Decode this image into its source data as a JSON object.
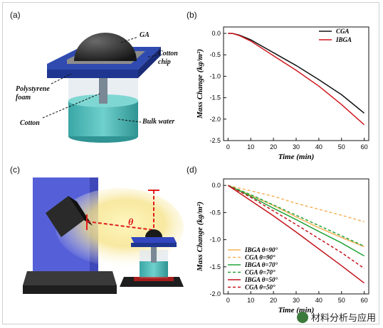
{
  "panels": {
    "a": {
      "label": "(a)",
      "annotations": {
        "ga": "GA",
        "cotton_chip": "Cotton chip",
        "polystyrene_foam": "Polystyrene foam",
        "cotton": "Cotton",
        "bulk_water": "Bulk water"
      }
    },
    "b": {
      "label": "(b)"
    },
    "c": {
      "label": "(c)",
      "theta": "θ"
    },
    "d": {
      "label": "(d)"
    }
  },
  "watermark": "材料分析与应用",
  "colors": {
    "black": "#111111",
    "red": "#d0161d",
    "orange": "#f5b35a",
    "green": "#22a33a",
    "darkred": "#c4141c"
  },
  "chart_data": [
    {
      "type": "line",
      "xlabel": "Time (min)",
      "ylabel": "Mass Change (kg/m²)",
      "xlim": [
        -2,
        62
      ],
      "ylim": [
        -2.5,
        0.15
      ],
      "xticks": [
        0,
        10,
        20,
        30,
        40,
        50,
        60
      ],
      "yticks": [
        0.0,
        -0.5,
        -1.0,
        -1.5,
        -2.0,
        -2.5
      ],
      "ytick_labels": [
        "0.0",
        "-0.5",
        "-1.0",
        "-1.5",
        "-2.0",
        "-2.5"
      ],
      "legend_position": "top-right",
      "series": [
        {
          "name": "CGA",
          "color": "#111111",
          "dash": "solid",
          "x": [
            0,
            2,
            5,
            10,
            20,
            30,
            40,
            50,
            60
          ],
          "y": [
            0,
            0,
            -0.04,
            -0.15,
            -0.45,
            -0.75,
            -1.08,
            -1.43,
            -1.86
          ]
        },
        {
          "name": "IBGA",
          "color": "#d0161d",
          "dash": "solid",
          "x": [
            0,
            2,
            5,
            10,
            20,
            30,
            40,
            50,
            60
          ],
          "y": [
            0,
            0,
            -0.05,
            -0.18,
            -0.52,
            -0.86,
            -1.23,
            -1.66,
            -2.13
          ]
        }
      ]
    },
    {
      "type": "line",
      "xlabel": "Time (min)",
      "ylabel": "Mass Change (kg/m²)",
      "xlim": [
        -2,
        62
      ],
      "ylim": [
        -2.0,
        0.12
      ],
      "xticks": [
        0,
        10,
        20,
        30,
        40,
        50,
        60
      ],
      "yticks": [
        0.0,
        -0.5,
        -1.0,
        -1.5,
        -2.0
      ],
      "ytick_labels": [
        "0.0",
        "-0.5",
        "-1.0",
        "-1.5",
        "-2.0"
      ],
      "legend_position": "bottom-left",
      "series": [
        {
          "name": "IBGA θ=90°",
          "color": "#f5b35a",
          "dash": "solid",
          "x": [
            0,
            10,
            20,
            30,
            40,
            50,
            60
          ],
          "y": [
            0,
            -0.18,
            -0.37,
            -0.58,
            -0.78,
            -0.96,
            -1.13
          ]
        },
        {
          "name": "CGA θ=90°",
          "color": "#f5b35a",
          "dash": "dashed",
          "x": [
            0,
            10,
            20,
            30,
            40,
            50,
            60
          ],
          "y": [
            0,
            -0.1,
            -0.2,
            -0.33,
            -0.44,
            -0.55,
            -0.67
          ]
        },
        {
          "name": "IBGA θ=70°",
          "color": "#22a33a",
          "dash": "solid",
          "x": [
            0,
            10,
            20,
            30,
            40,
            50,
            60
          ],
          "y": [
            0,
            -0.2,
            -0.42,
            -0.63,
            -0.85,
            -1.06,
            -1.3
          ]
        },
        {
          "name": "CGA θ=70°",
          "color": "#22a33a",
          "dash": "dashed",
          "x": [
            0,
            10,
            20,
            30,
            40,
            50,
            60
          ],
          "y": [
            0,
            -0.17,
            -0.36,
            -0.55,
            -0.74,
            -0.93,
            -1.12
          ]
        },
        {
          "name": "IBGA θ=50°",
          "color": "#c4141c",
          "dash": "solid",
          "x": [
            0,
            10,
            20,
            30,
            40,
            50,
            60
          ],
          "y": [
            0,
            -0.28,
            -0.56,
            -0.86,
            -1.17,
            -1.48,
            -1.8
          ]
        },
        {
          "name": "CGA θ=50°",
          "color": "#c4141c",
          "dash": "dashed",
          "x": [
            0,
            10,
            20,
            30,
            40,
            50,
            60
          ],
          "y": [
            0,
            -0.22,
            -0.47,
            -0.72,
            -0.98,
            -1.24,
            -1.53
          ]
        }
      ]
    }
  ]
}
